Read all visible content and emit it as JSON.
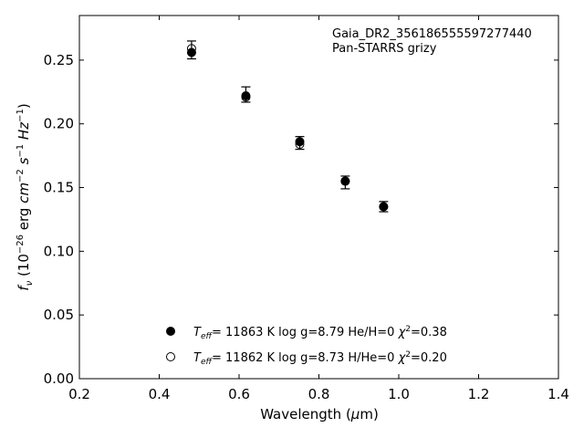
{
  "chart_data": {
    "type": "scatter",
    "xlabel": "Wavelength (μm)",
    "ylabel": "f_ν (10^−26 erg cm^−2 s^−1 Hz^−1)",
    "xlim": [
      0.2,
      1.4
    ],
    "ylim": [
      0.0,
      0.285
    ],
    "x_ticks": [
      "0.2",
      "0.4",
      "0.6",
      "0.8",
      "1.0",
      "1.2",
      "1.4"
    ],
    "y_ticks": [
      "0.00",
      "0.05",
      "0.10",
      "0.15",
      "0.20",
      "0.25"
    ],
    "grid": false,
    "annotations": [
      "Gaia_DR2_3561865555972774​40",
      "Pan-STARRS grizy"
    ],
    "observed": {
      "x": [
        0.481,
        0.617,
        0.752,
        0.866,
        0.962
      ],
      "y": [
        0.258,
        0.223,
        0.185,
        0.154,
        0.135
      ],
      "yerr": [
        0.007,
        0.006,
        0.005,
        0.005,
        0.004
      ]
    },
    "series": [
      {
        "name": "T_eff= 11863 K  log g=8.79  He/H=0  χ²=0.38",
        "marker": "filled-circle",
        "x": [
          0.481,
          0.617,
          0.752,
          0.866,
          0.962
        ],
        "y": [
          0.256,
          0.222,
          0.186,
          0.155,
          0.135
        ]
      },
      {
        "name": "T_eff= 11862 K  log g=8.73  H/He=0  χ²=0.20",
        "marker": "open-circle",
        "x": [
          0.481,
          0.617,
          0.752,
          0.866,
          0.962
        ],
        "y": [
          0.259,
          0.221,
          0.184,
          0.155,
          0.135
        ]
      }
    ],
    "legend_position": "bottom-center"
  }
}
